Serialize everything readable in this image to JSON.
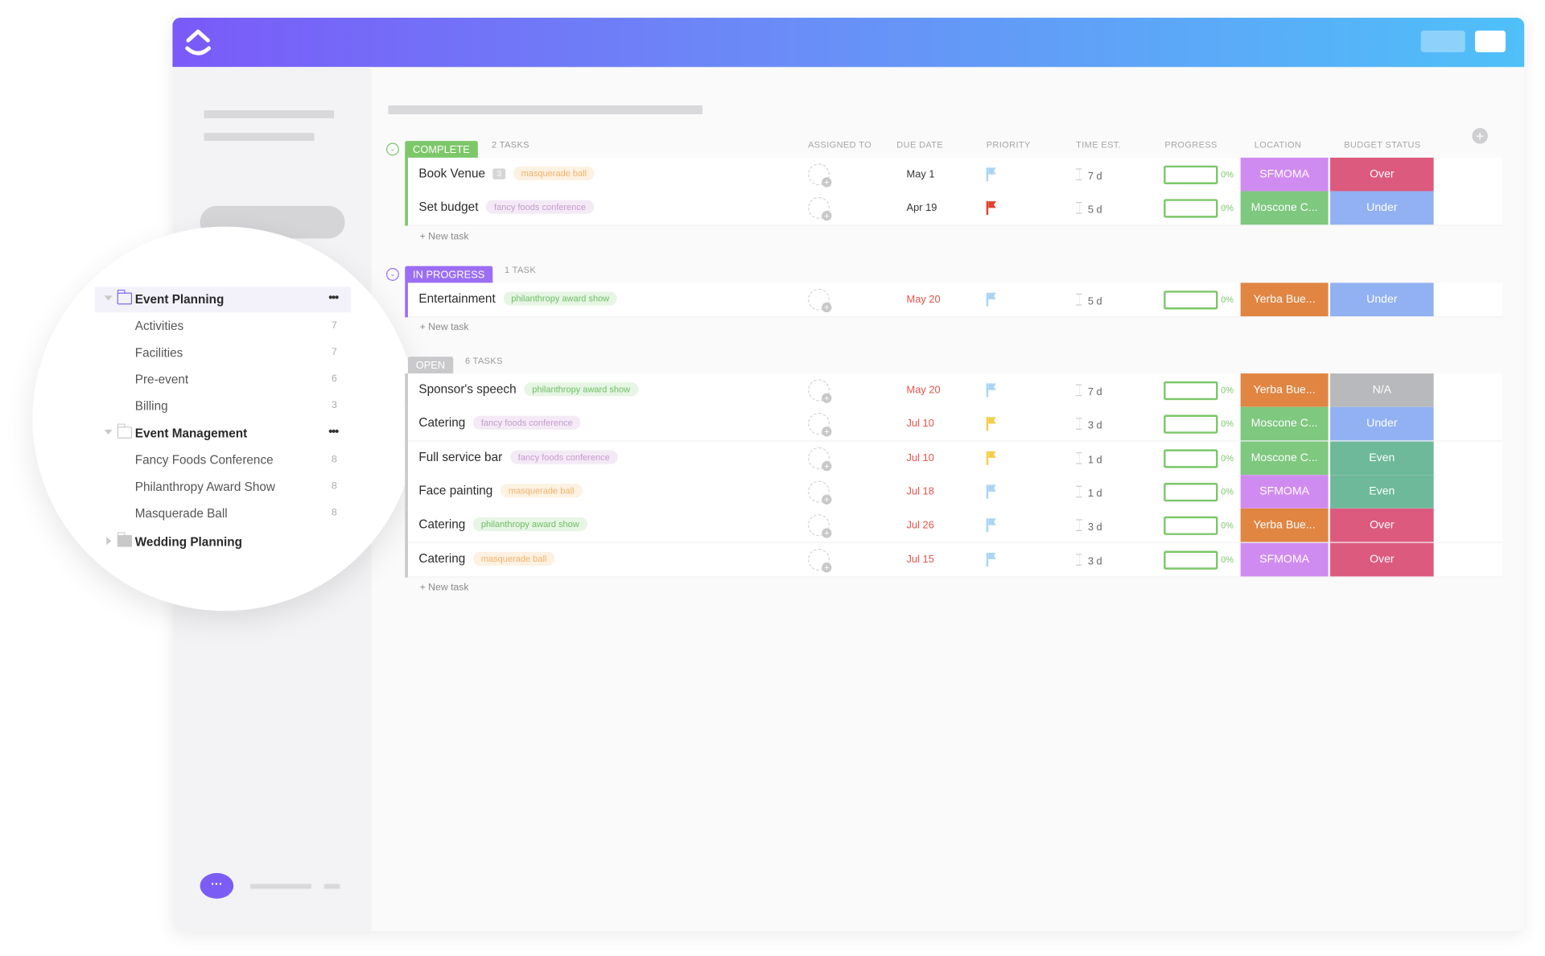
{
  "sidebar": {
    "items": [
      {
        "label": "Event Planning",
        "type": "folder",
        "expanded": true,
        "active": true,
        "menu": "•••"
      },
      {
        "label": "Activities",
        "count": "7"
      },
      {
        "label": "Facilities",
        "count": "7"
      },
      {
        "label": "Pre-event",
        "count": "6"
      },
      {
        "label": "Billing",
        "count": "3"
      },
      {
        "label": "Event Management",
        "type": "folder",
        "expanded": true,
        "menu": "•••"
      },
      {
        "label": "Fancy Foods Conference",
        "count": "8"
      },
      {
        "label": "Philanthropy Award Show",
        "count": "8"
      },
      {
        "label": "Masquerade Ball",
        "count": "8"
      },
      {
        "label": "Wedding Planning",
        "type": "folder",
        "expanded": false
      }
    ],
    "chat_icon": "chat-bubble-icon"
  },
  "columns": [
    "ASSIGNED TO",
    "DUE DATE",
    "PRIORITY",
    "TIME EST.",
    "PROGRESS",
    "LOCATION",
    "BUDGET STATUS"
  ],
  "new_task_label": "+ New task",
  "colors": {
    "complete": "#7cc76a",
    "in_progress": "#9b6ef3",
    "open": "#c9c9cc",
    "flag_blue": "#a9d4f5",
    "flag_red": "#e2412f",
    "flag_yellow": "#f5cd4a",
    "due_red": "#e5534b",
    "due_normal": "#333333",
    "loc_SFMOMA": "#d08bf0",
    "loc_Moscone": "#7ec87f",
    "loc_Yerba": "#e08542",
    "bud_Over": "#dc5a7e",
    "bud_Under": "#91b1f2",
    "bud_NA": "#b8b9bc",
    "bud_Even": "#6db99a",
    "tag_masquerade": [
      "#fdf1e2",
      "#f0b36b"
    ],
    "tag_fancy": [
      "#f4eaf6",
      "#c79bd0"
    ],
    "tag_philanthropy": [
      "#e7f5e5",
      "#6cbf63"
    ]
  },
  "sections": [
    {
      "status": "COMPLETE",
      "key": "complete",
      "count_label": "2 TASKS",
      "tasks": [
        {
          "name": "Book Venue",
          "subtasks": "3",
          "tag": "masquerade ball",
          "tag_key": "masquerade",
          "due": "May 1",
          "due_overdue": false,
          "priority": "blue",
          "time": "7 d",
          "progress": 0,
          "progress_label": "0%",
          "location": "SFMOMA",
          "loc_key": "SFMOMA",
          "budget": "Over",
          "bud_key": "Over"
        },
        {
          "name": "Set budget",
          "tag": "fancy foods conference",
          "tag_key": "fancy",
          "due": "Apr 19",
          "due_overdue": false,
          "priority": "red",
          "time": "5 d",
          "progress": 0,
          "progress_label": "0%",
          "location": "Moscone C...",
          "loc_key": "Moscone",
          "budget": "Under",
          "bud_key": "Under"
        }
      ]
    },
    {
      "status": "IN PROGRESS",
      "key": "in_progress",
      "count_label": "1 TASK",
      "tasks": [
        {
          "name": "Entertainment",
          "tag": "philanthropy award show",
          "tag_key": "philanthropy",
          "due": "May 20",
          "due_overdue": true,
          "priority": "blue",
          "time": "5 d",
          "progress": 0,
          "progress_label": "0%",
          "location": "Yerba Bue...",
          "loc_key": "Yerba",
          "budget": "Under",
          "bud_key": "Under"
        }
      ]
    },
    {
      "status": "OPEN",
      "key": "open",
      "count_label": "6 TASKS",
      "tasks": [
        {
          "name": "Sponsor's speech",
          "tag": "philanthropy award show",
          "tag_key": "philanthropy",
          "due": "May 20",
          "due_overdue": true,
          "priority": "blue",
          "time": "7 d",
          "progress": 0,
          "progress_label": "0%",
          "location": "Yerba Bue...",
          "loc_key": "Yerba",
          "budget": "N/A",
          "bud_key": "NA"
        },
        {
          "name": "Catering",
          "tag": "fancy foods conference",
          "tag_key": "fancy",
          "due": "Jul 10",
          "due_overdue": true,
          "priority": "yellow",
          "time": "3 d",
          "progress": 0,
          "progress_label": "0%",
          "location": "Moscone C...",
          "loc_key": "Moscone",
          "budget": "Under",
          "bud_key": "Under"
        },
        {
          "name": "Full service bar",
          "tag": "fancy foods conference",
          "tag_key": "fancy",
          "due": "Jul 10",
          "due_overdue": true,
          "priority": "yellow",
          "time": "1 d",
          "progress": 0,
          "progress_label": "0%",
          "location": "Moscone C...",
          "loc_key": "Moscone",
          "budget": "Even",
          "bud_key": "Even"
        },
        {
          "name": "Face painting",
          "tag": "masquerade ball",
          "tag_key": "masquerade",
          "due": "Jul 18",
          "due_overdue": true,
          "priority": "blue",
          "time": "1 d",
          "progress": 0,
          "progress_label": "0%",
          "location": "SFMOMA",
          "loc_key": "SFMOMA",
          "budget": "Even",
          "bud_key": "Even"
        },
        {
          "name": "Catering",
          "tag": "philanthropy award show",
          "tag_key": "philanthropy",
          "due": "Jul 26",
          "due_overdue": true,
          "priority": "blue",
          "time": "3 d",
          "progress": 0,
          "progress_label": "0%",
          "location": "Yerba Bue...",
          "loc_key": "Yerba",
          "budget": "Over",
          "bud_key": "Over"
        },
        {
          "name": "Catering",
          "tag": "masquerade ball",
          "tag_key": "masquerade",
          "due": "Jul 15",
          "due_overdue": true,
          "priority": "blue",
          "time": "3 d",
          "progress": 0,
          "progress_label": "0%",
          "location": "SFMOMA",
          "loc_key": "SFMOMA",
          "budget": "Over",
          "bud_key": "Over"
        }
      ]
    }
  ]
}
